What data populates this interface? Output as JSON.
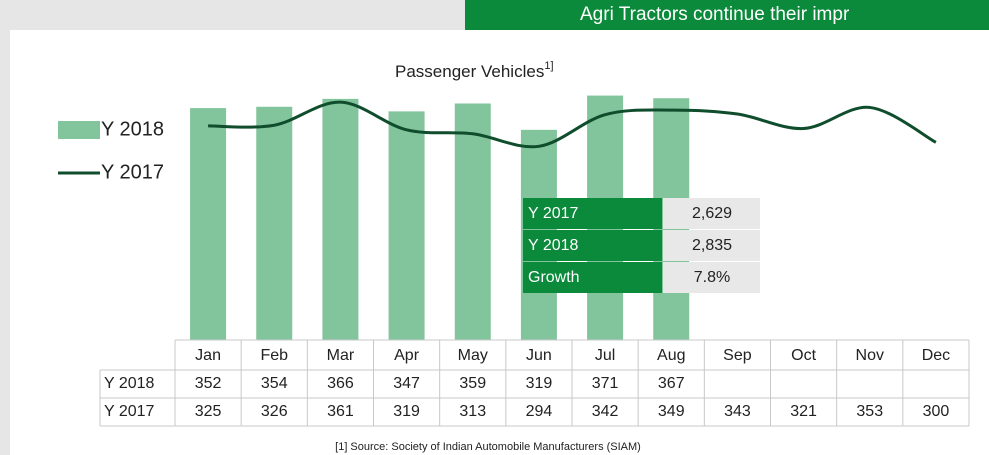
{
  "banner": "Agri Tractors continue their impr",
  "chart_data": {
    "type": "bar_line",
    "title": "Passenger Vehicles",
    "title_note": "1]",
    "categories": [
      "Jan",
      "Feb",
      "Mar",
      "Apr",
      "May",
      "Jun",
      "Jul",
      "Aug",
      "Sep",
      "Oct",
      "Nov",
      "Dec"
    ],
    "series": [
      {
        "name": "Y 2018",
        "type": "bar",
        "color": "#82c49c",
        "values": [
          352,
          354,
          366,
          347,
          359,
          319,
          371,
          367,
          null,
          null,
          null,
          null
        ]
      },
      {
        "name": "Y 2017",
        "type": "line",
        "color": "#0f4d2c",
        "values": [
          325,
          326,
          361,
          319,
          313,
          294,
          342,
          349,
          343,
          321,
          353,
          300
        ]
      }
    ],
    "ylim": [
      0,
      425
    ],
    "summary": [
      {
        "label": "Y 2017",
        "value": "2,629"
      },
      {
        "label": "Y 2018",
        "value": "2,835"
      },
      {
        "label": "Growth",
        "value": "7.8%"
      }
    ],
    "footnote": "[1] Source: Society of Indian Automobile Manufacturers (SIAM)"
  }
}
